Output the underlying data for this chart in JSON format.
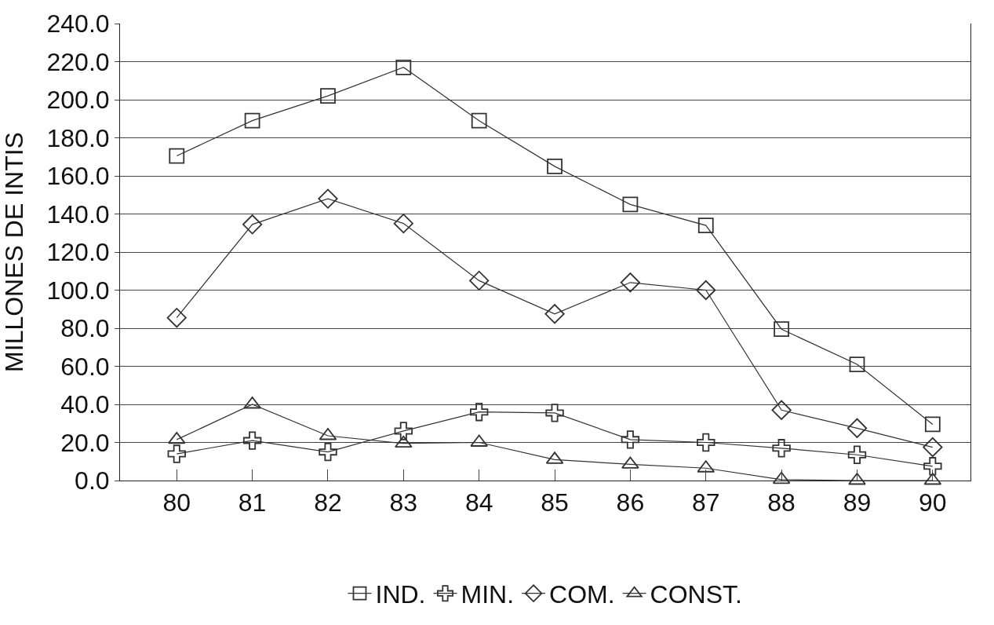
{
  "chart_data": {
    "type": "line",
    "ylabel": "MILLONES DE INTIS",
    "categories": [
      "80",
      "81",
      "82",
      "83",
      "84",
      "85",
      "86",
      "87",
      "88",
      "89",
      "90"
    ],
    "series": [
      {
        "name": "IND.",
        "color": "#333333",
        "marker": "square",
        "values": [
          170.5,
          189,
          202,
          217,
          189,
          165,
          145,
          134,
          79.5,
          61,
          29.5
        ]
      },
      {
        "name": "MIN.",
        "color": "#333333",
        "marker": "cross",
        "values": [
          14,
          21,
          15,
          26,
          36,
          35.5,
          21.5,
          20,
          17,
          13.5,
          7.5
        ]
      },
      {
        "name": "COM.",
        "color": "#333333",
        "marker": "diamond",
        "values": [
          85.5,
          134.5,
          148,
          135,
          105,
          87.5,
          104,
          100,
          37,
          27.5,
          17.5
        ]
      },
      {
        "name": "CONST.",
        "color": "#333333",
        "marker": "triangle",
        "values": [
          21.5,
          40,
          23.5,
          19.5,
          20,
          11,
          8.5,
          6.5,
          0.5,
          0,
          0
        ]
      }
    ],
    "ylim": [
      0,
      240
    ],
    "yticks": [
      {
        "value": 0,
        "label": "0.0"
      },
      {
        "value": 20,
        "label": "20.0"
      },
      {
        "value": 40,
        "label": "40.0"
      },
      {
        "value": 60,
        "label": "60.0"
      },
      {
        "value": 80,
        "label": "80.0"
      },
      {
        "value": 100,
        "label": "100.0"
      },
      {
        "value": 120,
        "label": "120.0"
      },
      {
        "value": 140,
        "label": "140.0"
      },
      {
        "value": 160,
        "label": "160.0"
      },
      {
        "value": 180,
        "label": "180.0"
      },
      {
        "value": 200,
        "label": "200.0"
      },
      {
        "value": 220,
        "label": "220.0"
      },
      {
        "value": 240,
        "label": "240.0"
      }
    ],
    "grid": "y",
    "legend": "bottom",
    "line_style": "solid"
  }
}
